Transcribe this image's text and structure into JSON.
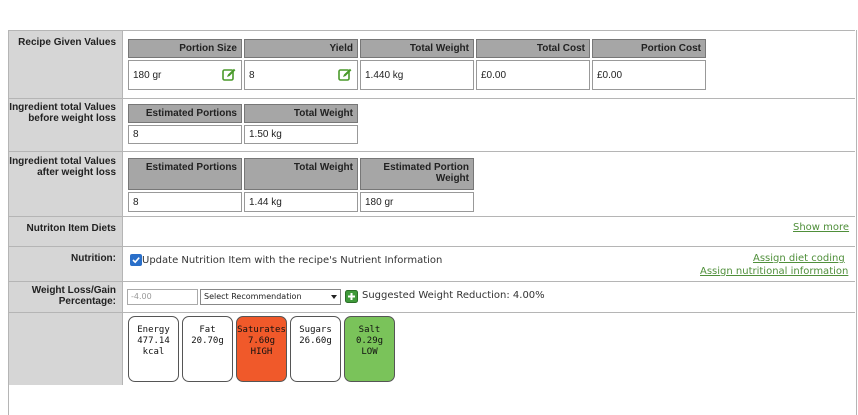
{
  "rows": {
    "recipe_given": {
      "label": "Recipe Given Values",
      "headers": [
        "Portion Size",
        "Yield",
        "Total Weight",
        "Total Cost",
        "Portion Cost"
      ],
      "values": [
        "180 gr",
        "8",
        "1.440 kg",
        "£0.00",
        "£0.00"
      ]
    },
    "before_loss": {
      "label": "Ingredient total Values before weight loss",
      "headers": [
        "Estimated Portions",
        "Total Weight"
      ],
      "values": [
        "8",
        "1.50 kg"
      ]
    },
    "after_loss": {
      "label": "Ingredient total Values after weight loss",
      "headers": [
        "Estimated Portions",
        "Total Weight",
        "Estimated Portion Weight"
      ],
      "values": [
        "8",
        "1.44 kg",
        "180 gr"
      ]
    },
    "diets": {
      "label": "Nutriton Item Diets",
      "show_more": "Show more"
    },
    "nutrition": {
      "label": "Nutrition:",
      "checkbox_label": "Update Nutrition Item with the recipe's Nutrient Information",
      "assign_diet": "Assign diet coding",
      "assign_nutritional": "Assign nutritional information"
    },
    "weight_loss": {
      "label": "Weight Loss/Gain Percentage:",
      "input_placeholder": "-4.00",
      "select_value": "Select Recommendation",
      "suggested": "Suggested Weight Reduction: 4.00%"
    }
  },
  "nutrients": [
    {
      "name": "Energy",
      "value": "477.14",
      "unit": "kcal",
      "level": "",
      "color": "#ffffff"
    },
    {
      "name": "Fat",
      "value": "20.70g",
      "unit": "",
      "level": "",
      "color": "#ffffff"
    },
    {
      "name": "Saturates",
      "value": "7.60g",
      "unit": "",
      "level": "HIGH",
      "color": "#f0592a"
    },
    {
      "name": "Sugars",
      "value": "26.60g",
      "unit": "",
      "level": "",
      "color": "#ffffff"
    },
    {
      "name": "Salt",
      "value": "0.29g",
      "unit": "",
      "level": "LOW",
      "color": "#7ac35a"
    }
  ],
  "icons": {
    "edit": "edit-icon",
    "add": "add-icon",
    "checkbox": "check-icon"
  }
}
